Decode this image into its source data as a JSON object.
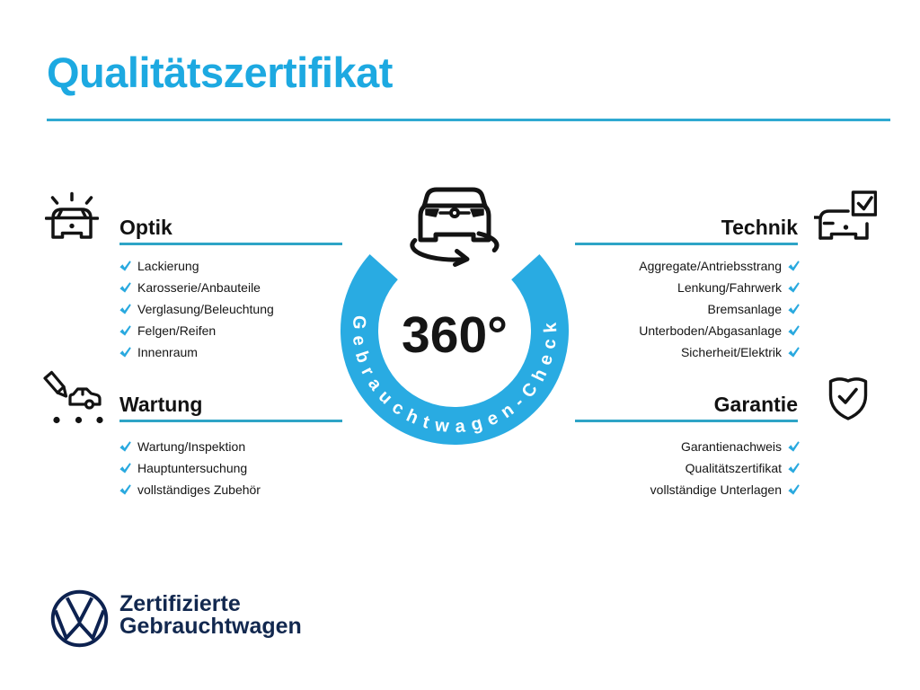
{
  "title": "Qualitätszertifikat",
  "badge": {
    "degree_label": "360°",
    "ring_label": "Gebrauchtwagen-Check",
    "icon": "rotating-car-icon"
  },
  "sections": {
    "optik": {
      "title": "Optik",
      "icon": "car-front-shine-icon",
      "items": [
        "Lackierung",
        "Karosserie/Anbauteile",
        "Verglasung/Beleuchtung",
        "Felgen/Reifen",
        "Innenraum"
      ]
    },
    "technik": {
      "title": "Technik",
      "icon": "car-checklist-icon",
      "items": [
        "Aggregate/Antriebsstrang",
        "Lenkung/Fahrwerk",
        "Bremsanlage",
        "Unterboden/Abgasanlage",
        "Sicherheit/Elektrik"
      ]
    },
    "wartung": {
      "title": "Wartung",
      "icon": "pencil-car-icon",
      "items": [
        "Wartung/Inspektion",
        "Hauptuntersuchung",
        "vollständiges Zubehör"
      ]
    },
    "garantie": {
      "title": "Garantie",
      "icon": "shield-check-icon",
      "items": [
        "Garantienachweis",
        "Qualitätszertifikat",
        "vollständige Unterlagen"
      ]
    }
  },
  "footer": {
    "logo": "vw-logo",
    "line1": "Zertifizierte",
    "line2": "Gebrauchtwagen"
  },
  "colors": {
    "accent_blue": "#1da9e1",
    "ring_blue": "#29abe2",
    "underline_teal": "#2ea4c6",
    "check_blue": "#29a9df",
    "dark_navy": "#12284f",
    "text_black": "#151515"
  }
}
